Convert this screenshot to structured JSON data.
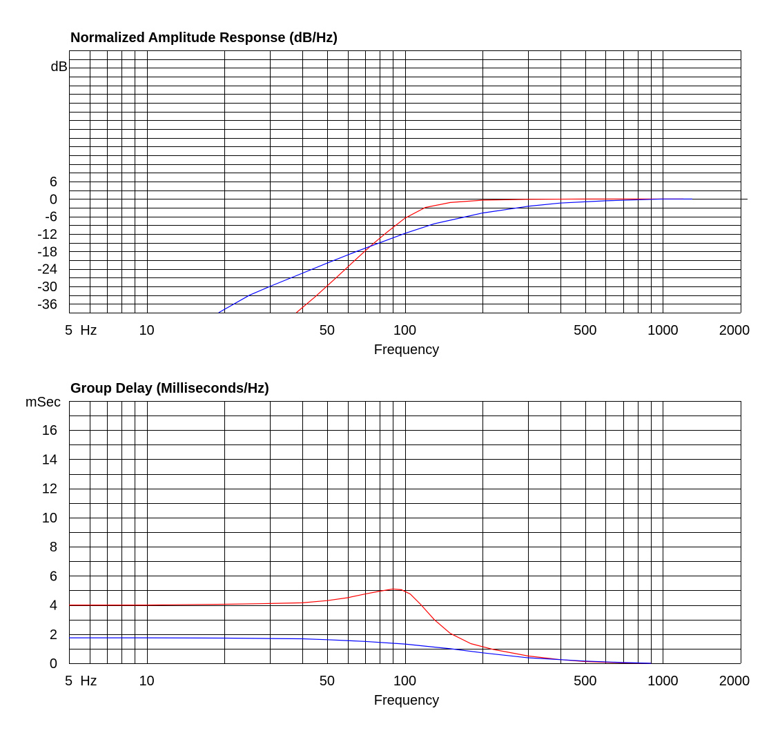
{
  "chart_data": [
    {
      "type": "line",
      "title": "Normalized Amplitude Response (dB/Hz)",
      "xlabel": "Frequency",
      "ylabel": "dB",
      "xscale": "log",
      "xlim": [
        5,
        2000
      ],
      "ylim": [
        -39,
        51
      ],
      "x_tick_labels": [
        {
          "value": 5,
          "label": "5  Hz"
        },
        {
          "value": 10,
          "label": "10"
        },
        {
          "value": 50,
          "label": "50"
        },
        {
          "value": 100,
          "label": "100"
        },
        {
          "value": 500,
          "label": "500"
        },
        {
          "value": 1000,
          "label": "1000"
        },
        {
          "value": 2000,
          "label": "2000"
        }
      ],
      "y_ticks": [
        6,
        0,
        -6,
        -12,
        -18,
        -24,
        -30,
        -36
      ],
      "grid_step": 3,
      "reference_line": 0,
      "series": [
        {
          "name": "red",
          "color": "#ff0000",
          "x": [
            38,
            45,
            55,
            65,
            75,
            85,
            100,
            120,
            150,
            200,
            300,
            500,
            800,
            1200
          ],
          "y": [
            -39,
            -33.5,
            -26.5,
            -20.5,
            -15.5,
            -11.5,
            -6.6,
            -2.9,
            -1.2,
            -0.4,
            -0.1,
            0,
            0,
            0
          ]
        },
        {
          "name": "blue",
          "color": "#0000ff",
          "x": [
            19,
            25,
            30,
            40,
            50,
            65,
            80,
            100,
            130,
            170,
            200,
            300,
            400,
            600,
            1000,
            1300
          ],
          "y": [
            -39,
            -33,
            -30,
            -25.5,
            -22,
            -18,
            -15,
            -11.8,
            -8.5,
            -6.2,
            -4.8,
            -2.5,
            -1.4,
            -0.6,
            0,
            0
          ]
        }
      ]
    },
    {
      "type": "line",
      "title": "Group Delay (Milliseconds/Hz)",
      "xlabel": "Frequency",
      "ylabel": "mSec",
      "xscale": "log",
      "xlim": [
        5,
        2000
      ],
      "ylim": [
        0,
        18
      ],
      "x_tick_labels": [
        {
          "value": 5,
          "label": "5  Hz"
        },
        {
          "value": 10,
          "label": "10"
        },
        {
          "value": 50,
          "label": "50"
        },
        {
          "value": 100,
          "label": "100"
        },
        {
          "value": 500,
          "label": "500"
        },
        {
          "value": 1000,
          "label": "1000"
        },
        {
          "value": 2000,
          "label": "2000"
        }
      ],
      "y_ticks": [
        0,
        2,
        4,
        6,
        8,
        10,
        12,
        14,
        16
      ],
      "grid_step": 1,
      "series": [
        {
          "name": "red",
          "color": "#ff0000",
          "x": [
            5,
            10,
            20,
            30,
            40,
            50,
            60,
            70,
            80,
            90,
            97,
            105,
            115,
            130,
            150,
            180,
            220,
            300,
            400,
            500,
            700,
            900
          ],
          "y": [
            4.0,
            4.0,
            4.05,
            4.1,
            4.15,
            4.3,
            4.5,
            4.75,
            4.95,
            5.1,
            5.05,
            4.75,
            4.05,
            3.0,
            2.05,
            1.35,
            0.95,
            0.5,
            0.25,
            0.12,
            0.03,
            0
          ]
        },
        {
          "name": "blue",
          "color": "#0000ff",
          "x": [
            5,
            10,
            20,
            30,
            40,
            50,
            70,
            100,
            150,
            200,
            300,
            500,
            700,
            900
          ],
          "y": [
            1.75,
            1.75,
            1.73,
            1.7,
            1.68,
            1.62,
            1.5,
            1.32,
            1.0,
            0.72,
            0.38,
            0.15,
            0.05,
            0
          ]
        }
      ]
    }
  ]
}
